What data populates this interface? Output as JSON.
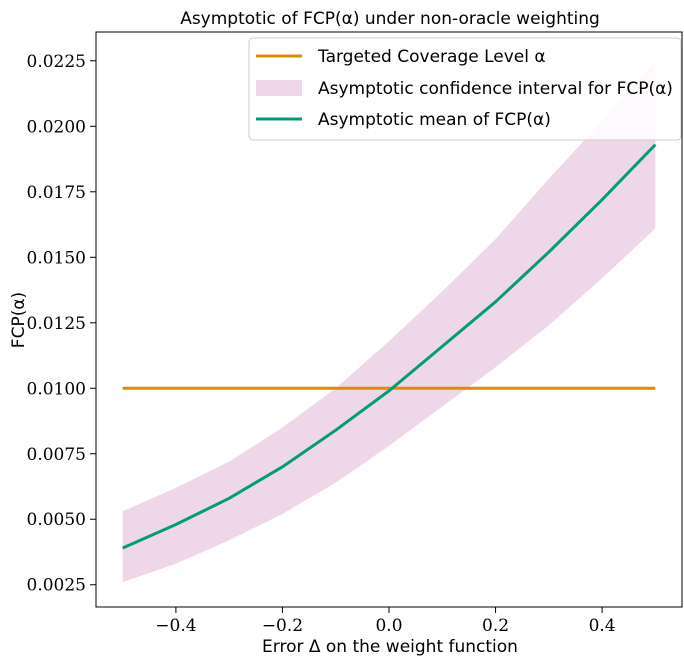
{
  "chart_data": {
    "type": "line",
    "title": "Asymptotic of FCP(α) under non-oracle weighting",
    "xlabel": "Error Δ on the weight function",
    "ylabel": "FCP(α)",
    "xlim": [
      -0.55,
      0.55
    ],
    "ylim": [
      0.00165,
      0.0236
    ],
    "xticks": [
      -0.4,
      -0.2,
      0.0,
      0.2,
      0.4
    ],
    "xtick_labels": [
      "−0.4",
      "−0.2",
      "0.0",
      "0.2",
      "0.4"
    ],
    "yticks": [
      0.0025,
      0.005,
      0.0075,
      0.01,
      0.0125,
      0.015,
      0.0175,
      0.02,
      0.0225
    ],
    "ytick_labels": [
      "0.0025",
      "0.0050",
      "0.0075",
      "0.0100",
      "0.0125",
      "0.0150",
      "0.0175",
      "0.0200",
      "0.0225"
    ],
    "grid": false,
    "legend_position": "top-right",
    "x": [
      -0.5,
      -0.4,
      -0.3,
      -0.2,
      -0.1,
      0.0,
      0.1,
      0.2,
      0.3,
      0.4,
      0.5
    ],
    "series": [
      {
        "name": "Targeted Coverage Level α",
        "color": "#E08C00",
        "kind": "line",
        "values": [
          0.01,
          0.01,
          0.01,
          0.01,
          0.01,
          0.01,
          0.01,
          0.01,
          0.01,
          0.01,
          0.01
        ]
      },
      {
        "name": "Asymptotic confidence interval for FCP(α)",
        "color": "#EFD7EA",
        "kind": "band",
        "lower": [
          0.0026,
          0.0033,
          0.0042,
          0.0052,
          0.0064,
          0.0078,
          0.0093,
          0.0108,
          0.0124,
          0.0142,
          0.0161
        ],
        "upper": [
          0.0053,
          0.0062,
          0.0072,
          0.0085,
          0.01,
          0.0118,
          0.0137,
          0.0157,
          0.018,
          0.0202,
          0.0225
        ]
      },
      {
        "name": "Asymptotic mean of FCP(α)",
        "color": "#009E73",
        "kind": "line",
        "values": [
          0.0039,
          0.0048,
          0.0058,
          0.007,
          0.0084,
          0.0099,
          0.0116,
          0.0133,
          0.0152,
          0.0172,
          0.0193
        ]
      }
    ]
  }
}
